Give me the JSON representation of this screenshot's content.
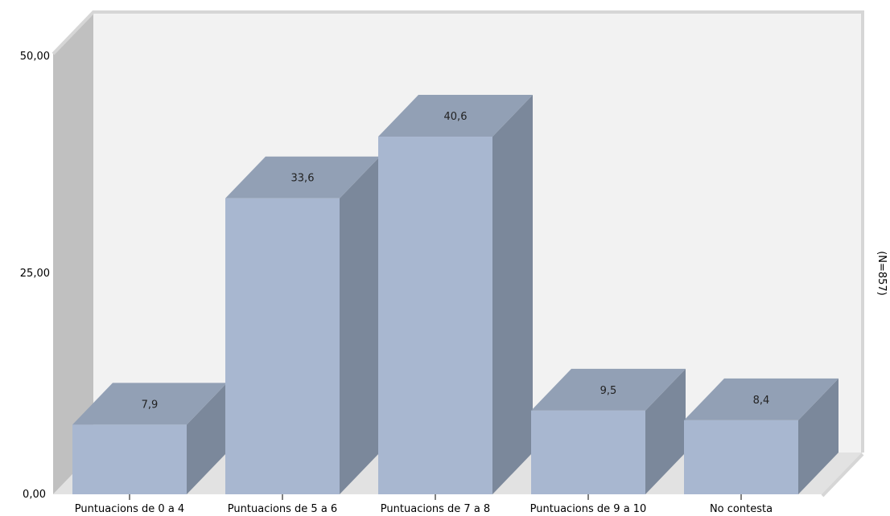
{
  "chart_data": {
    "type": "bar",
    "categories": [
      "Puntuacions de 0 a 4",
      "Puntuacions de 5 a 6",
      "Puntuacions de 7 a 8",
      "Puntuacions de 9 a 10",
      "No contesta"
    ],
    "values": [
      7.9,
      33.6,
      40.6,
      9.5,
      8.4
    ],
    "value_labels": [
      "7,9",
      "33,6",
      "40,6",
      "9,5",
      "8,4"
    ],
    "ylim": [
      0,
      50
    ],
    "y_ticks": [
      0,
      25,
      50
    ],
    "y_tick_labels": [
      "0,00",
      "25,00",
      "50,00"
    ],
    "side_note": "(N=857)",
    "style": "3d",
    "colors": {
      "bar_front": "#a8b7d0",
      "bar_top": "#92a0b5",
      "bar_side": "#7b889b",
      "back_wall": "#f2f2f2",
      "left_wall": "#c0c0c0",
      "floor": "#e2e2e2",
      "frame": "#d6d6d6"
    }
  }
}
